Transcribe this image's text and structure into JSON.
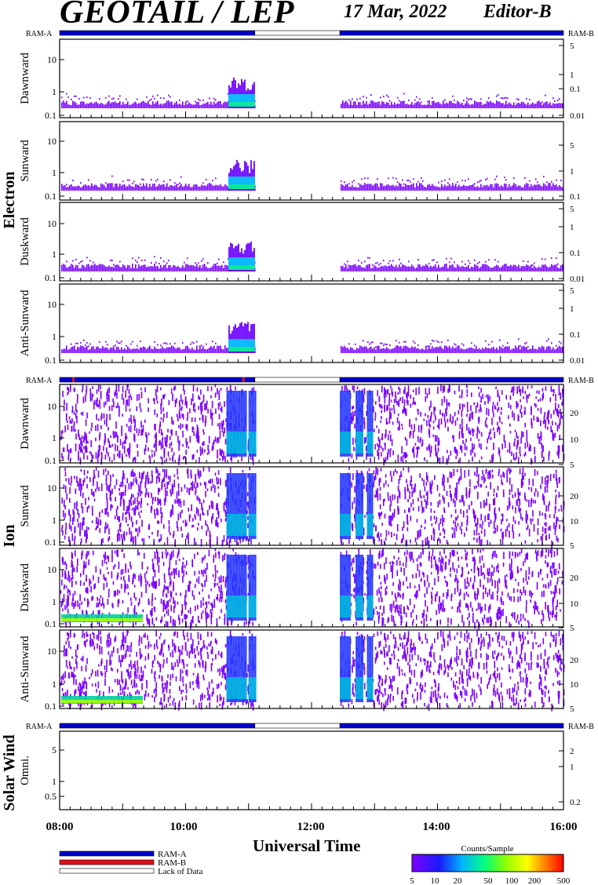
{
  "header": {
    "instrument": "GEOTAIL / LEP",
    "date": "17 Mar, 2022",
    "editor": "Editor-B"
  },
  "colors": {
    "ram_a": "#0000cc",
    "ram_b": "#e0101a",
    "lack": "#ffffff",
    "background": "#ffffff"
  },
  "chart_data": {
    "type": "heatmap",
    "xlabel": "Universal Time",
    "x_ticks": [
      "08:00",
      "10:00",
      "12:00",
      "14:00",
      "16:00"
    ],
    "x_range_hours": [
      8,
      16
    ],
    "data_gap_ut": [
      11.1,
      12.45
    ],
    "ram_label_left": "RAM-A",
    "ram_label_right": "RAM-B",
    "groups": [
      {
        "name": "Electron",
        "channels": [
          "Dawnward",
          "Sunward",
          "Duskward",
          "Anti-Sunward"
        ],
        "y_ticks_left": [
          "10",
          "1",
          "0.1"
        ],
        "y_ticks_right": [
          "5",
          "1",
          "0.1",
          "0.01"
        ]
      },
      {
        "name": "Ion",
        "channels": [
          "Dawnward",
          "Sunward",
          "Duskward",
          "Anti-Sunward"
        ],
        "y_ticks_left": [
          "10",
          "1",
          "0.1"
        ],
        "y_ticks_right": [
          "20",
          "10",
          "5"
        ]
      },
      {
        "name": "Solar Wind",
        "channels": [
          "Omni."
        ],
        "y_ticks_left": [
          "5",
          "1",
          "0.5"
        ],
        "y_ticks_right": [
          "2",
          "1",
          "0.2"
        ]
      }
    ],
    "legend": {
      "items": [
        "RAM-A",
        "RAM-B",
        "Lack of Data"
      ]
    },
    "colorbar": {
      "title": "Counts/Sample",
      "ticks": [
        "5",
        "10",
        "20",
        "50",
        "100",
        "200",
        "500"
      ]
    }
  }
}
